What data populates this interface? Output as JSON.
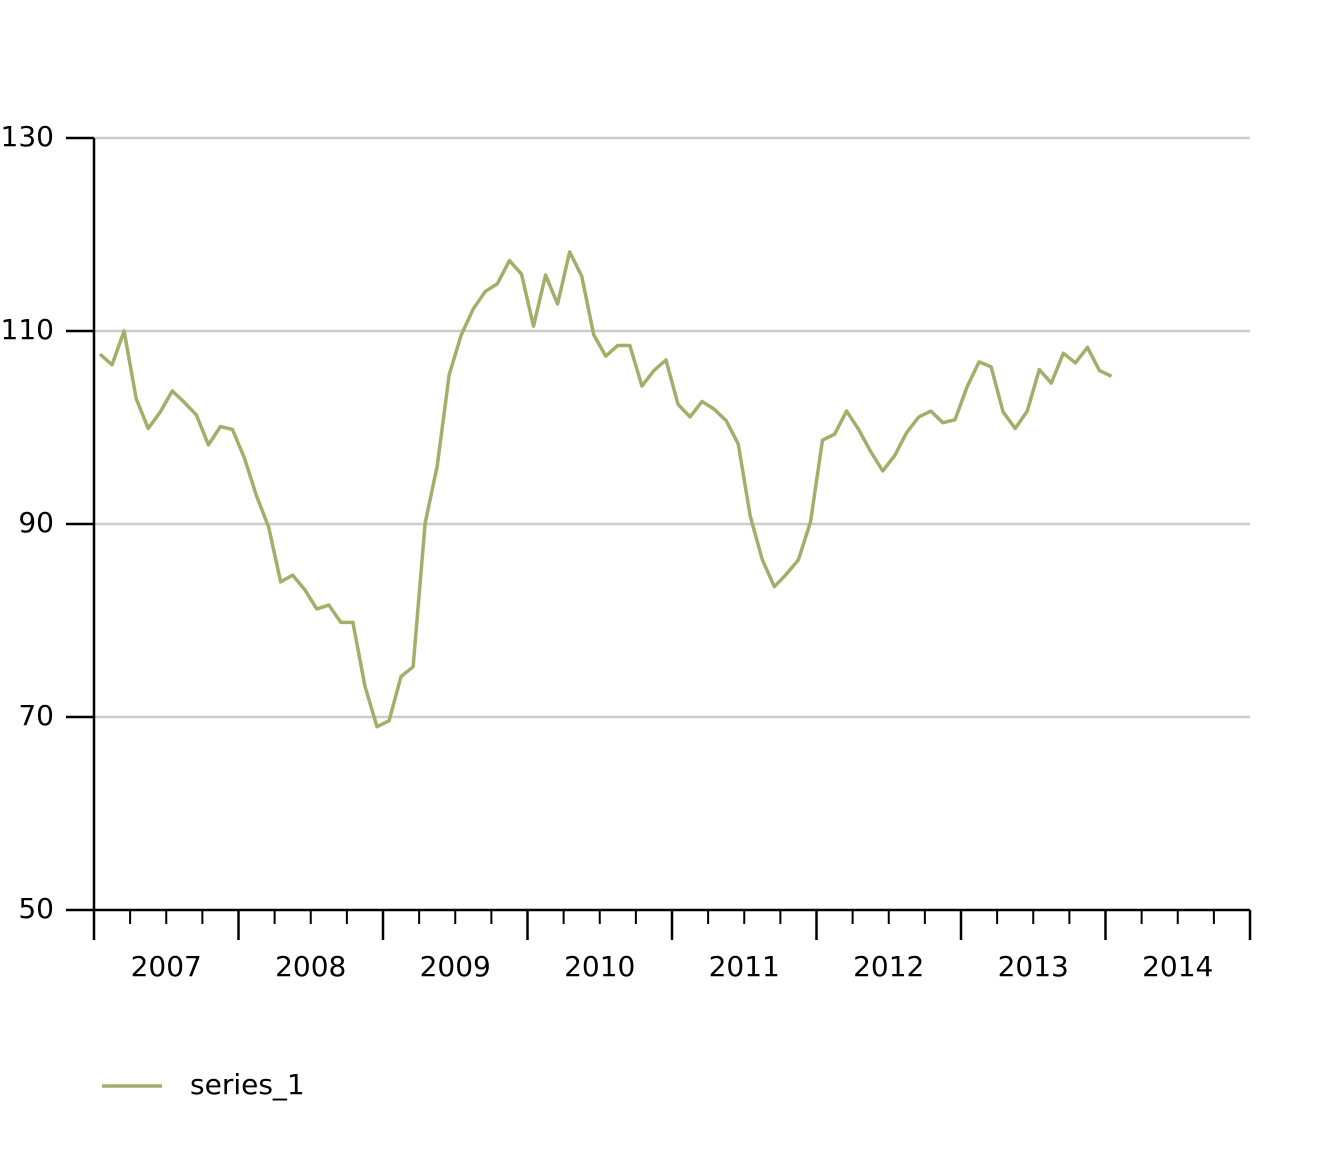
{
  "chart_data": {
    "type": "line",
    "x": [
      "2007-01",
      "2007-02",
      "2007-03",
      "2007-04",
      "2007-05",
      "2007-06",
      "2007-07",
      "2007-08",
      "2007-09",
      "2007-10",
      "2007-11",
      "2007-12",
      "2008-01",
      "2008-02",
      "2008-03",
      "2008-04",
      "2008-05",
      "2008-06",
      "2008-07",
      "2008-08",
      "2008-09",
      "2008-10",
      "2008-11",
      "2008-12",
      "2009-01",
      "2009-02",
      "2009-03",
      "2009-04",
      "2009-05",
      "2009-06",
      "2009-07",
      "2009-08",
      "2009-09",
      "2009-10",
      "2009-11",
      "2009-12",
      "2010-01",
      "2010-02",
      "2010-03",
      "2010-04",
      "2010-05",
      "2010-06",
      "2010-07",
      "2010-08",
      "2010-09",
      "2010-10",
      "2010-11",
      "2010-12",
      "2011-01",
      "2011-02",
      "2011-03",
      "2011-04",
      "2011-05",
      "2011-06",
      "2011-07",
      "2011-08",
      "2011-09",
      "2011-10",
      "2011-11",
      "2011-12",
      "2012-01",
      "2012-02",
      "2012-03",
      "2012-04",
      "2012-05",
      "2012-06",
      "2012-07",
      "2012-08",
      "2012-09",
      "2012-10",
      "2012-11",
      "2012-12",
      "2013-01",
      "2013-02",
      "2013-03",
      "2013-04",
      "2013-05",
      "2013-06",
      "2013-07",
      "2013-08",
      "2013-09",
      "2013-10",
      "2013-11",
      "2013-12",
      "2014-01"
    ],
    "series": [
      {
        "name": "series_1",
        "color": "#a5ad6a",
        "values": [
          107.6,
          106.5,
          110.0,
          103.0,
          99.9,
          101.6,
          103.8,
          102.6,
          101.3,
          98.2,
          100.1,
          99.8,
          96.8,
          92.9,
          89.7,
          84.0,
          84.7,
          83.2,
          81.2,
          81.6,
          79.8,
          79.8,
          73.2,
          69.0,
          69.6,
          74.2,
          75.2,
          90.1,
          96.0,
          105.5,
          109.6,
          112.3,
          114.1,
          114.9,
          117.3,
          115.9,
          110.5,
          115.8,
          112.8,
          118.2,
          115.7,
          109.6,
          107.4,
          108.5,
          108.5,
          104.3,
          105.9,
          107.0,
          102.4,
          101.1,
          102.7,
          101.9,
          100.7,
          98.3,
          90.8,
          86.3,
          83.5,
          84.8,
          86.3,
          90.2,
          98.7,
          99.3,
          101.7,
          99.8,
          97.5,
          95.5,
          97.1,
          99.5,
          101.1,
          101.7,
          100.5,
          100.8,
          104.2,
          106.8,
          106.3,
          101.6,
          99.9,
          101.7,
          106.0,
          104.6,
          107.7,
          106.7,
          108.3,
          105.9,
          105.3
        ]
      }
    ],
    "xlim": [
      "2007-01",
      "2014-12"
    ],
    "xticks": [
      "2007",
      "2008",
      "2009",
      "2010",
      "2011",
      "2012",
      "2013",
      "2014"
    ],
    "ylim": [
      50,
      130
    ],
    "yticks": [
      50,
      70,
      90,
      110,
      130
    ],
    "grid": true,
    "legend": "bottom-left"
  }
}
